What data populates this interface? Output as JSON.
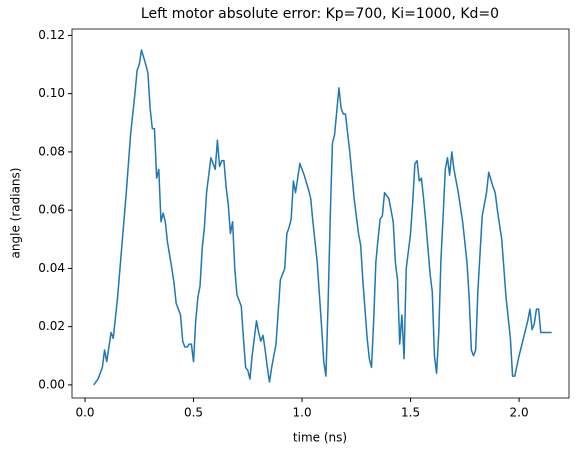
{
  "chart_data": {
    "type": "line",
    "title": "Left motor absolute error: Kp=700, Ki=1000, Kd=0",
    "x_label": "time (ns)",
    "y_label": "angle (radians)",
    "x": [
      0.04,
      0.06,
      0.08,
      0.09,
      0.1,
      0.12,
      0.13,
      0.15,
      0.17,
      0.19,
      0.21,
      0.23,
      0.24,
      0.25,
      0.26,
      0.28,
      0.29,
      0.3,
      0.31,
      0.32,
      0.33,
      0.34,
      0.35,
      0.36,
      0.37,
      0.38,
      0.4,
      0.41,
      0.42,
      0.44,
      0.45,
      0.46,
      0.47,
      0.48,
      0.49,
      0.5,
      0.51,
      0.52,
      0.53,
      0.54,
      0.55,
      0.56,
      0.57,
      0.58,
      0.59,
      0.6,
      0.61,
      0.62,
      0.63,
      0.64,
      0.65,
      0.66,
      0.67,
      0.68,
      0.69,
      0.7,
      0.72,
      0.73,
      0.74,
      0.75,
      0.76,
      0.77,
      0.78,
      0.79,
      0.8,
      0.81,
      0.82,
      0.83,
      0.84,
      0.85,
      0.86,
      0.88,
      0.9,
      0.91,
      0.92,
      0.93,
      0.94,
      0.95,
      0.96,
      0.97,
      0.99,
      1.01,
      1.03,
      1.04,
      1.05,
      1.07,
      1.09,
      1.1,
      1.11,
      1.12,
      1.13,
      1.14,
      1.15,
      1.16,
      1.17,
      1.18,
      1.19,
      1.2,
      1.22,
      1.24,
      1.26,
      1.27,
      1.28,
      1.29,
      1.3,
      1.31,
      1.32,
      1.33,
      1.34,
      1.35,
      1.36,
      1.37,
      1.38,
      1.4,
      1.41,
      1.42,
      1.43,
      1.44,
      1.45,
      1.46,
      1.47,
      1.48,
      1.5,
      1.51,
      1.52,
      1.53,
      1.54,
      1.55,
      1.56,
      1.57,
      1.59,
      1.6,
      1.61,
      1.62,
      1.63,
      1.64,
      1.65,
      1.66,
      1.67,
      1.68,
      1.69,
      1.7,
      1.72,
      1.74,
      1.76,
      1.77,
      1.78,
      1.79,
      1.8,
      1.81,
      1.82,
      1.83,
      1.85,
      1.86,
      1.88,
      1.89,
      1.9,
      1.92,
      1.94,
      1.96,
      1.97,
      1.98,
      2.0,
      2.02,
      2.04,
      2.05,
      2.06,
      2.07,
      2.08,
      2.09,
      2.1,
      2.15
    ],
    "series": [
      {
        "color": "#1f77b4",
        "values": [
          0.0,
          0.002,
          0.006,
          0.012,
          0.008,
          0.018,
          0.016,
          0.03,
          0.048,
          0.066,
          0.086,
          0.1,
          0.108,
          0.11,
          0.115,
          0.11,
          0.107,
          0.095,
          0.088,
          0.088,
          0.071,
          0.074,
          0.056,
          0.059,
          0.056,
          0.049,
          0.04,
          0.035,
          0.028,
          0.024,
          0.015,
          0.013,
          0.013,
          0.014,
          0.014,
          0.008,
          0.022,
          0.03,
          0.034,
          0.047,
          0.054,
          0.066,
          0.072,
          0.078,
          0.076,
          0.074,
          0.084,
          0.075,
          0.077,
          0.077,
          0.068,
          0.062,
          0.052,
          0.056,
          0.04,
          0.031,
          0.027,
          0.016,
          0.006,
          0.005,
          0.002,
          0.01,
          0.016,
          0.022,
          0.018,
          0.015,
          0.017,
          0.012,
          0.006,
          0.001,
          0.006,
          0.014,
          0.036,
          0.038,
          0.04,
          0.052,
          0.054,
          0.057,
          0.07,
          0.066,
          0.076,
          0.072,
          0.067,
          0.064,
          0.056,
          0.042,
          0.02,
          0.008,
          0.003,
          0.028,
          0.058,
          0.083,
          0.086,
          0.094,
          0.102,
          0.095,
          0.093,
          0.093,
          0.08,
          0.064,
          0.052,
          0.048,
          0.036,
          0.026,
          0.016,
          0.009,
          0.006,
          0.022,
          0.042,
          0.05,
          0.057,
          0.058,
          0.066,
          0.064,
          0.06,
          0.056,
          0.042,
          0.036,
          0.014,
          0.024,
          0.009,
          0.04,
          0.052,
          0.063,
          0.076,
          0.077,
          0.07,
          0.071,
          0.064,
          0.056,
          0.038,
          0.032,
          0.01,
          0.004,
          0.018,
          0.043,
          0.058,
          0.074,
          0.078,
          0.072,
          0.08,
          0.074,
          0.066,
          0.056,
          0.042,
          0.03,
          0.012,
          0.01,
          0.012,
          0.032,
          0.045,
          0.058,
          0.066,
          0.073,
          0.068,
          0.066,
          0.06,
          0.05,
          0.03,
          0.016,
          0.003,
          0.003,
          0.01,
          0.016,
          0.022,
          0.026,
          0.019,
          0.021,
          0.026,
          0.026,
          0.018,
          0.018
        ]
      }
    ],
    "xlim": [
      -0.06,
      2.23
    ],
    "xticks": [
      {
        "value": 0,
        "label": "0.0"
      },
      0.5,
      {
        "value": 1,
        "label": "1.0"
      },
      1.5,
      {
        "value": 2,
        "label": "2.0"
      }
    ],
    "ylim": [
      -0.0045,
      0.1222
    ],
    "yticks": [
      {
        "value": 0,
        "label": "0.00"
      },
      {
        "value": 0.02,
        "label": "0.02"
      },
      {
        "value": 0.04,
        "label": "0.04"
      },
      {
        "value": 0.06,
        "label": "0.06"
      },
      {
        "value": 0.08,
        "label": "0.08"
      },
      {
        "value": 0.1,
        "label": "0.10"
      },
      {
        "value": 0.12,
        "label": "0.12"
      }
    ],
    "grid": false
  }
}
